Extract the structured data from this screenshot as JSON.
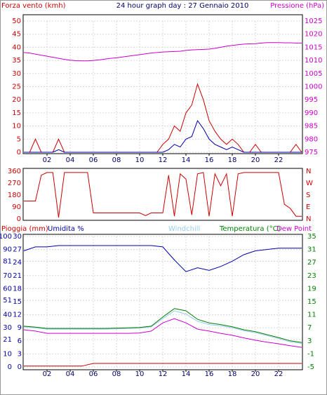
{
  "chart_data": [
    {
      "type": "line",
      "title": "24 hour graph day : 27 Gennaio 2010",
      "y_label": "Forza vento (kmh)",
      "y2_label": "Pressione (hPa)",
      "xlim": [
        0,
        24
      ],
      "xticks": [
        {
          "value": 2,
          "label": "02"
        },
        {
          "value": 4,
          "label": "04"
        },
        {
          "value": 6,
          "label": "06"
        },
        {
          "value": 8,
          "label": "08"
        },
        {
          "value": 10,
          "label": "10"
        },
        {
          "value": 12,
          "label": "12"
        },
        {
          "value": 14,
          "label": "14"
        },
        {
          "value": 16,
          "label": "16"
        },
        {
          "value": 18,
          "label": "18"
        },
        {
          "value": 20,
          "label": "20"
        },
        {
          "value": 22,
          "label": "22"
        }
      ],
      "ylim": [
        0,
        50
      ],
      "yticks": [
        0,
        5,
        10,
        15,
        20,
        25,
        30,
        35,
        40,
        45,
        50
      ],
      "y2lim": [
        975,
        1025
      ],
      "y2ticks": [
        975,
        980,
        985,
        990,
        995,
        1000,
        1005,
        1010,
        1015,
        1020,
        1025
      ],
      "grid": true,
      "x": [
        0,
        0.5,
        1,
        1.5,
        2,
        2.5,
        3,
        3.5,
        4,
        4.5,
        5,
        5.5,
        6,
        6.5,
        7,
        7.5,
        8,
        8.5,
        9,
        9.5,
        10,
        10.5,
        11,
        11.5,
        12,
        12.5,
        13,
        13.5,
        14,
        14.5,
        15,
        15.5,
        16,
        16.5,
        17,
        17.5,
        18,
        18.5,
        19,
        19.5,
        20,
        20.5,
        21,
        21.5,
        22,
        22.5,
        23,
        23.5,
        24
      ],
      "series": [
        {
          "color": "#cc00cc",
          "axis": "y2",
          "values": [
            1013,
            1012.8,
            1012.4,
            1012,
            1011.6,
            1011.2,
            1010.8,
            1010.4,
            1010.1,
            1009.9,
            1009.8,
            1009.8,
            1010,
            1010.2,
            1010.5,
            1010.8,
            1011,
            1011.3,
            1011.6,
            1011.9,
            1012.2,
            1012.5,
            1012.8,
            1013,
            1013.2,
            1013.3,
            1013.4,
            1013.5,
            1013.8,
            1014,
            1014.1,
            1014.2,
            1014.3,
            1014.6,
            1015,
            1015.4,
            1015.7,
            1016,
            1016.2,
            1016.3,
            1016.4,
            1016.6,
            1016.8,
            1016.8,
            1016.8,
            1016.7,
            1016.7,
            1016.6,
            1016.6
          ]
        },
        {
          "color": "#cc0000",
          "values": [
            0,
            0,
            5,
            0,
            0,
            0,
            5,
            0,
            0,
            0,
            0,
            0,
            0,
            0,
            0,
            0,
            0,
            0,
            0,
            0,
            0,
            0,
            0,
            0,
            3,
            5,
            10,
            8,
            15,
            18,
            26,
            20,
            12,
            8,
            5,
            3,
            5,
            3,
            0,
            0,
            3,
            0,
            0,
            0,
            0,
            0,
            0,
            3,
            0
          ]
        },
        {
          "color": "#0000aa",
          "values": [
            0,
            0,
            0,
            0,
            0,
            0,
            1,
            0,
            0,
            0,
            0,
            0,
            0,
            0,
            0,
            0,
            0,
            0,
            0,
            0,
            0,
            0,
            0,
            0,
            0,
            1,
            3,
            2,
            5,
            6,
            12,
            9,
            5,
            3,
            2,
            1,
            2,
            1,
            0,
            0,
            0,
            0,
            0,
            0,
            0,
            0,
            0,
            0,
            0
          ]
        }
      ]
    },
    {
      "type": "line",
      "xlim": [
        0,
        24
      ],
      "ylim": [
        0,
        360
      ],
      "yticks": [
        0,
        90,
        180,
        270,
        360
      ],
      "y2lim": [
        0,
        360
      ],
      "y2ticks": [
        {
          "value": 0,
          "label": "N"
        },
        {
          "value": 90,
          "label": "E"
        },
        {
          "value": 180,
          "label": "S"
        },
        {
          "value": 270,
          "label": "W"
        },
        {
          "value": 360,
          "label": "N"
        }
      ],
      "grid": false,
      "x": [
        0,
        0.5,
        1,
        1.5,
        2,
        2.5,
        3,
        3.5,
        4,
        4.5,
        5,
        5.5,
        6,
        6.5,
        7,
        7.5,
        8,
        8.5,
        9,
        9.5,
        10,
        10.5,
        11,
        11.5,
        12,
        12.5,
        13,
        13.5,
        14,
        14.5,
        15,
        15.5,
        16,
        16.5,
        17,
        17.5,
        18,
        18.5,
        19,
        19.5,
        20,
        20.5,
        21,
        21.5,
        22,
        22.5,
        23,
        23.5,
        24
      ],
      "series": [
        {
          "color": "#cc0000",
          "values": [
            135,
            135,
            135,
            330,
            350,
            350,
            10,
            350,
            350,
            350,
            350,
            350,
            45,
            45,
            45,
            45,
            45,
            45,
            45,
            45,
            45,
            25,
            45,
            45,
            45,
            330,
            20,
            340,
            300,
            30,
            340,
            350,
            20,
            340,
            250,
            340,
            20,
            340,
            350,
            350,
            350,
            350,
            350,
            350,
            350,
            110,
            80,
            20,
            20
          ]
        }
      ]
    },
    {
      "type": "line",
      "xlim": [
        0,
        24
      ],
      "xticks": [
        {
          "value": 2,
          "label": "02"
        },
        {
          "value": 4,
          "label": "04"
        },
        {
          "value": 6,
          "label": "06"
        },
        {
          "value": 8,
          "label": "08"
        },
        {
          "value": 10,
          "label": "10"
        },
        {
          "value": 12,
          "label": "12"
        },
        {
          "value": 14,
          "label": "14"
        },
        {
          "value": 16,
          "label": "16"
        },
        {
          "value": 18,
          "label": "18"
        },
        {
          "value": 20,
          "label": "20"
        },
        {
          "value": 22,
          "label": "22"
        }
      ],
      "ylim": [
        0,
        100
      ],
      "yticks": [
        0,
        10,
        21,
        30,
        40,
        51,
        60,
        70,
        81,
        90,
        100
      ],
      "y3lim": [
        0,
        30
      ],
      "y3ticks": [
        0,
        3,
        6,
        9,
        12,
        15,
        18,
        21,
        24,
        27,
        30
      ],
      "y2lim": [
        -5,
        35
      ],
      "y2ticks": [
        -5,
        -1,
        3,
        7,
        11,
        15,
        19,
        23,
        27,
        31,
        35
      ],
      "grid": true,
      "x": [
        0,
        1,
        2,
        3,
        4,
        5,
        6,
        7,
        8,
        9,
        10,
        11,
        12,
        13,
        14,
        15,
        16,
        17,
        18,
        19,
        20,
        21,
        22,
        23,
        24
      ],
      "series": [
        {
          "name": "Pioggia (mm)",
          "color": "#cc0000",
          "axis": "y3",
          "values": [
            0.2,
            0.2,
            0.2,
            0.2,
            0.2,
            0.2,
            0.8,
            0.8,
            0.8,
            0.8,
            0.8,
            0.8,
            0.8,
            0.8,
            0.8,
            0.8,
            0.8,
            0.8,
            0.8,
            0.8,
            0.8,
            0.8,
            0.8,
            0.8,
            0.8
          ]
        },
        {
          "name": "Umidita %",
          "color": "#0000aa",
          "values": [
            89,
            92,
            92,
            93,
            93,
            93,
            93,
            93,
            93,
            93,
            93,
            93,
            92,
            82,
            73,
            76,
            74,
            77,
            81,
            86,
            89,
            90,
            91,
            91,
            91
          ]
        },
        {
          "name": "Windchill",
          "color": "#99ccee",
          "axis": "y2",
          "values": [
            7.3,
            7,
            6.6,
            6.6,
            6.6,
            6.6,
            6.6,
            6.6,
            6.7,
            6.8,
            6.9,
            7.3,
            9.8,
            12.2,
            11.2,
            9,
            8,
            7.6,
            7,
            6.1,
            5.5,
            4.6,
            3.7,
            2.7,
            2.2
          ]
        },
        {
          "name": "Temperatura (°C)",
          "color": "#008000",
          "axis": "y2",
          "values": [
            7.5,
            7.2,
            6.8,
            6.8,
            6.8,
            6.8,
            6.8,
            6.8,
            6.9,
            7,
            7.1,
            7.5,
            10.3,
            12.9,
            12.2,
            9.6,
            8.5,
            8,
            7.3,
            6.4,
            5.8,
            4.9,
            4,
            3,
            2.5
          ]
        },
        {
          "name": "Dew Point",
          "color": "#cc00cc",
          "axis": "y2",
          "values": [
            6.4,
            6,
            5.3,
            5.3,
            5.3,
            5.3,
            5.3,
            5.3,
            5.3,
            5.3,
            5.4,
            6,
            8.5,
            9.8,
            8.5,
            6.6,
            6,
            5.3,
            4.7,
            3.9,
            3.2,
            2.6,
            2.1,
            1.5,
            1
          ]
        }
      ]
    }
  ]
}
